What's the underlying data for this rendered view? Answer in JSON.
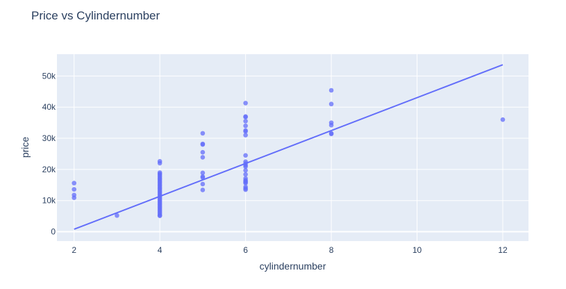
{
  "chart_data": {
    "type": "scatter",
    "title": "Price vs Cylindernumber",
    "xlabel": "cylindernumber",
    "ylabel": "price",
    "xlim": [
      1.6,
      12.6
    ],
    "ylim": [
      -3000,
      57000
    ],
    "x_ticks": [
      {
        "value": 2,
        "label": "2"
      },
      {
        "value": 4,
        "label": "4"
      },
      {
        "value": 6,
        "label": "6"
      },
      {
        "value": 8,
        "label": "8"
      },
      {
        "value": 10,
        "label": "10"
      },
      {
        "value": 12,
        "label": "12"
      }
    ],
    "y_ticks": [
      {
        "value": 0,
        "label": "0"
      },
      {
        "value": 10000,
        "label": "10k"
      },
      {
        "value": 20000,
        "label": "20k"
      },
      {
        "value": 30000,
        "label": "30k"
      },
      {
        "value": 40000,
        "label": "40k"
      },
      {
        "value": 50000,
        "label": "50k"
      }
    ],
    "grid": true,
    "colors": {
      "background": "#e5ecf6",
      "grid": "#ffffff",
      "marker": "#636efa",
      "trendline": "#636efa",
      "text": "#2a3f5f"
    },
    "series": [
      {
        "kind": "markers",
        "points": [
          [
            2,
            15600
          ],
          [
            2,
            13600
          ],
          [
            2,
            11800
          ],
          [
            2,
            10900
          ],
          [
            3,
            5200
          ],
          [
            4,
            22600
          ],
          [
            4,
            22000
          ],
          [
            4,
            19000
          ],
          [
            4,
            18600
          ],
          [
            4,
            18200
          ],
          [
            4,
            17700
          ],
          [
            4,
            17200
          ],
          [
            4,
            16800
          ],
          [
            4,
            16300
          ],
          [
            4,
            15800
          ],
          [
            4,
            15300
          ],
          [
            4,
            14800
          ],
          [
            4,
            14300
          ],
          [
            4,
            13800
          ],
          [
            4,
            13300
          ],
          [
            4,
            12800
          ],
          [
            4,
            12300
          ],
          [
            4,
            11800
          ],
          [
            4,
            11300
          ],
          [
            4,
            10800
          ],
          [
            4,
            10300
          ],
          [
            4,
            9800
          ],
          [
            4,
            9300
          ],
          [
            4,
            8800
          ],
          [
            4,
            8300
          ],
          [
            4,
            7800
          ],
          [
            4,
            7300
          ],
          [
            4,
            6800
          ],
          [
            4,
            6300
          ],
          [
            4,
            5800
          ],
          [
            4,
            5300
          ],
          [
            4,
            5100
          ],
          [
            5,
            31600
          ],
          [
            5,
            28200
          ],
          [
            5,
            28000
          ],
          [
            5,
            25500
          ],
          [
            5,
            23900
          ],
          [
            5,
            18900
          ],
          [
            5,
            17700
          ],
          [
            5,
            17400
          ],
          [
            5,
            15300
          ],
          [
            5,
            13400
          ],
          [
            6,
            41300
          ],
          [
            6,
            37000
          ],
          [
            6,
            36800
          ],
          [
            6,
            35500
          ],
          [
            6,
            34000
          ],
          [
            6,
            32500
          ],
          [
            6,
            32200
          ],
          [
            6,
            31000
          ],
          [
            6,
            24500
          ],
          [
            6,
            22500
          ],
          [
            6,
            21900
          ],
          [
            6,
            21300
          ],
          [
            6,
            20900
          ],
          [
            6,
            19700
          ],
          [
            6,
            18400
          ],
          [
            6,
            17100
          ],
          [
            6,
            16500
          ],
          [
            6,
            16200
          ],
          [
            6,
            15900
          ],
          [
            6,
            15600
          ],
          [
            6,
            14400
          ],
          [
            6,
            13900
          ],
          [
            6,
            13500
          ],
          [
            8,
            45400
          ],
          [
            8,
            41000
          ],
          [
            8,
            35000
          ],
          [
            8,
            34200
          ],
          [
            8,
            31600
          ],
          [
            8,
            31400
          ],
          [
            12,
            36000
          ]
        ]
      },
      {
        "kind": "trendline",
        "points": [
          [
            2,
            800
          ],
          [
            12,
            53600
          ]
        ]
      }
    ]
  }
}
